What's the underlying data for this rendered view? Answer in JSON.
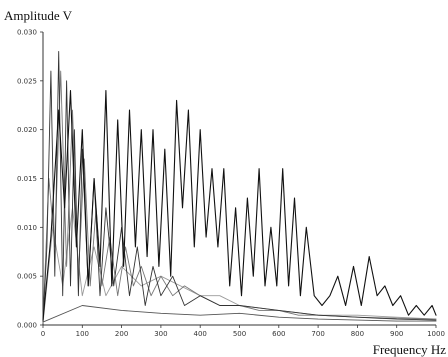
{
  "chart_data": {
    "type": "line",
    "title": "",
    "xlabel": "Frequency Hz",
    "ylabel": "Amplitude V",
    "xlim": [
      0,
      1000
    ],
    "ylim": [
      0,
      0.03
    ],
    "x_ticks": [
      "0",
      "100",
      "200",
      "300",
      "400",
      "500",
      "600",
      "700",
      "800",
      "900",
      "1000"
    ],
    "y_ticks": [
      "0.000",
      "0.005",
      "0.010",
      "0.015",
      "0.020",
      "0.025",
      "0.030"
    ],
    "grid": false,
    "legend": "none",
    "series": [
      {
        "color": "#111111",
        "x": [
          0,
          20,
          40,
          55,
          70,
          85,
          100,
          115,
          130,
          145,
          160,
          175,
          190,
          205,
          220,
          235,
          250,
          265,
          280,
          295,
          310,
          325,
          340,
          355,
          370,
          385,
          400,
          415,
          430,
          445,
          460,
          475,
          490,
          505,
          520,
          535,
          550,
          565,
          580,
          595,
          610,
          625,
          640,
          655,
          670,
          690,
          710,
          730,
          750,
          770,
          790,
          810,
          830,
          850,
          870,
          890,
          910,
          930,
          950,
          970,
          990,
          1000
        ],
        "y": [
          0.0005,
          0.009,
          0.022,
          0.012,
          0.024,
          0.008,
          0.02,
          0.004,
          0.015,
          0.006,
          0.024,
          0.004,
          0.021,
          0.006,
          0.022,
          0.008,
          0.02,
          0.007,
          0.02,
          0.006,
          0.018,
          0.005,
          0.023,
          0.012,
          0.022,
          0.008,
          0.02,
          0.009,
          0.016,
          0.008,
          0.016,
          0.004,
          0.012,
          0.003,
          0.013,
          0.005,
          0.016,
          0.004,
          0.01,
          0.004,
          0.016,
          0.004,
          0.013,
          0.003,
          0.01,
          0.003,
          0.002,
          0.003,
          0.005,
          0.002,
          0.006,
          0.002,
          0.007,
          0.003,
          0.004,
          0.002,
          0.003,
          0.001,
          0.002,
          0.001,
          0.002,
          0.001
        ]
      },
      {
        "color": "#333333",
        "x": [
          0,
          10,
          20,
          30,
          40,
          50,
          60,
          70,
          80,
          90,
          100,
          115,
          130,
          145,
          160,
          180,
          200,
          220,
          240,
          260,
          280,
          300,
          330,
          360,
          400,
          450,
          500,
          600,
          700,
          800,
          900,
          1000
        ],
        "y": [
          0.0003,
          0.008,
          0.026,
          0.005,
          0.028,
          0.003,
          0.025,
          0.004,
          0.02,
          0.003,
          0.018,
          0.004,
          0.015,
          0.003,
          0.012,
          0.004,
          0.01,
          0.003,
          0.008,
          0.002,
          0.006,
          0.003,
          0.005,
          0.002,
          0.003,
          0.002,
          0.002,
          0.0015,
          0.001,
          0.0008,
          0.0006,
          0.0005
        ]
      },
      {
        "color": "#777777",
        "x": [
          0,
          15,
          30,
          45,
          60,
          75,
          90,
          105,
          120,
          135,
          150,
          170,
          190,
          210,
          230,
          250,
          275,
          300,
          330,
          360,
          400,
          450,
          500,
          550,
          600,
          650,
          700,
          800,
          900,
          1000
        ],
        "y": [
          0.0004,
          0.015,
          0.008,
          0.026,
          0.006,
          0.022,
          0.005,
          0.017,
          0.004,
          0.012,
          0.004,
          0.009,
          0.003,
          0.008,
          0.004,
          0.006,
          0.003,
          0.005,
          0.003,
          0.004,
          0.003,
          0.002,
          0.002,
          0.0015,
          0.0015,
          0.001,
          0.001,
          0.0008,
          0.0007,
          0.0006
        ]
      },
      {
        "color": "#9a9a9a",
        "x": [
          0,
          25,
          50,
          75,
          100,
          130,
          160,
          200,
          250,
          300,
          350,
          400,
          450,
          500,
          600,
          700,
          800,
          900,
          1000
        ],
        "y": [
          0.0002,
          0.01,
          0.004,
          0.012,
          0.003,
          0.008,
          0.003,
          0.006,
          0.004,
          0.005,
          0.004,
          0.003,
          0.003,
          0.002,
          0.0015,
          0.001,
          0.001,
          0.0008,
          0.0006
        ]
      },
      {
        "color": "#555555",
        "x": [
          0,
          100,
          200,
          300,
          400,
          500,
          600,
          700,
          800,
          900,
          1000
        ],
        "y": [
          0.0003,
          0.002,
          0.0015,
          0.0012,
          0.001,
          0.0012,
          0.0008,
          0.0006,
          0.0005,
          0.0004,
          0.0004
        ]
      }
    ]
  }
}
